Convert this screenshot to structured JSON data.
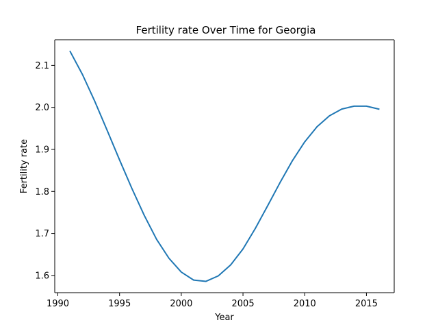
{
  "chart_data": {
    "type": "line",
    "title": "Fertility rate Over Time for Georgia",
    "xlabel": "Year",
    "ylabel": "Fertility rate",
    "xlim": [
      1989.75,
      2017.25
    ],
    "ylim": [
      1.559,
      2.161
    ],
    "xticks": [
      1990,
      1995,
      2000,
      2005,
      2010,
      2015
    ],
    "yticks": [
      1.6,
      1.7,
      1.8,
      1.9,
      2.0,
      2.1
    ],
    "xtick_labels": [
      "1990",
      "1995",
      "2000",
      "2005",
      "2010",
      "2015"
    ],
    "ytick_labels": [
      "1.6",
      "1.7",
      "1.8",
      "1.9",
      "2.0",
      "2.1"
    ],
    "grid": false,
    "line_color": "#1f77b4",
    "series": [
      {
        "x": [
          1991,
          1992,
          1993,
          1994,
          1995,
          1996,
          1997,
          1998,
          1999,
          2000,
          2001,
          2002,
          2003,
          2004,
          2005,
          2006,
          2007,
          2008,
          2009,
          2010,
          2011,
          2012,
          2013,
          2014,
          2015,
          2016
        ],
        "values": [
          2.133,
          2.078,
          2.014,
          1.945,
          1.875,
          1.807,
          1.743,
          1.686,
          1.641,
          1.608,
          1.589,
          1.586,
          1.599,
          1.625,
          1.663,
          1.712,
          1.766,
          1.821,
          1.873,
          1.918,
          1.954,
          1.98,
          1.996,
          2.003,
          2.003,
          1.996
        ]
      }
    ]
  }
}
